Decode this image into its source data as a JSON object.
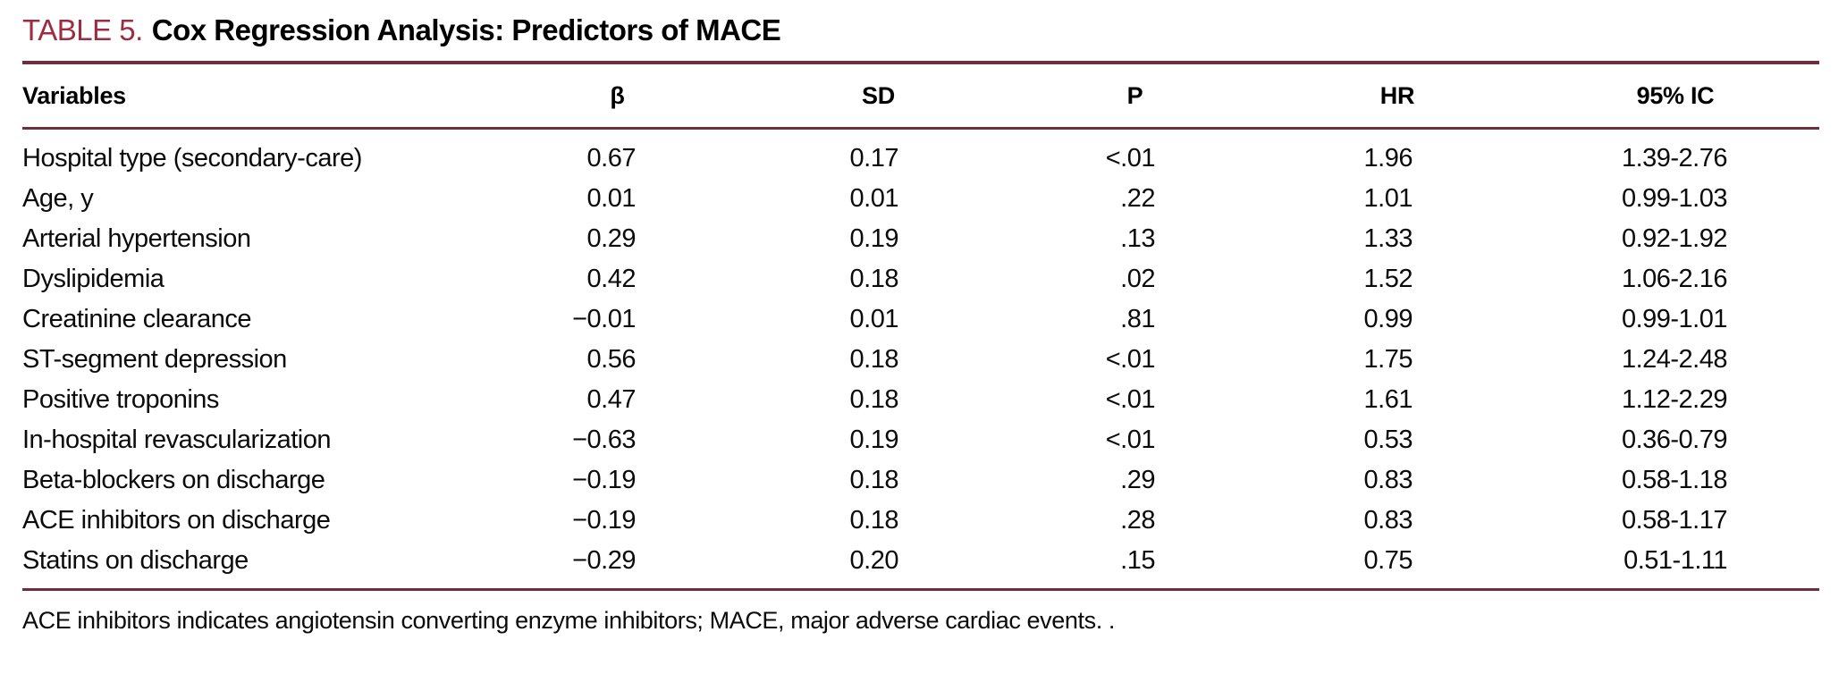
{
  "title": {
    "label": "TABLE 5.",
    "text": "Cox Regression Analysis: Predictors of MACE"
  },
  "colors": {
    "accent_red": "#9e2c41",
    "rule_maroon": "#6e2e3e",
    "text": "#000000",
    "background": "#ffffff"
  },
  "table": {
    "columns": [
      {
        "key": "variable",
        "label": "Variables"
      },
      {
        "key": "beta",
        "label": "β"
      },
      {
        "key": "sd",
        "label": "SD"
      },
      {
        "key": "p",
        "label": "P"
      },
      {
        "key": "hr",
        "label": "HR"
      },
      {
        "key": "ci",
        "label": "95% IC"
      }
    ],
    "rows": [
      {
        "variable": "Hospital type (secondary-care)",
        "beta": "0.67",
        "sd": "0.17",
        "p": "<.01",
        "hr": "1.96",
        "ci": "1.39-2.76"
      },
      {
        "variable": "Age, y",
        "beta": "0.01",
        "sd": "0.01",
        "p": ".22",
        "hr": "1.01",
        "ci": "0.99-1.03"
      },
      {
        "variable": "Arterial hypertension",
        "beta": "0.29",
        "sd": "0.19",
        "p": ".13",
        "hr": "1.33",
        "ci": "0.92-1.92"
      },
      {
        "variable": "Dyslipidemia",
        "beta": "0.42",
        "sd": "0.18",
        "p": ".02",
        "hr": "1.52",
        "ci": "1.06-2.16"
      },
      {
        "variable": "Creatinine clearance",
        "beta": "−0.01",
        "sd": "0.01",
        "p": ".81",
        "hr": "0.99",
        "ci": "0.99-1.01"
      },
      {
        "variable": "ST-segment depression",
        "beta": "0.56",
        "sd": "0.18",
        "p": "<.01",
        "hr": "1.75",
        "ci": "1.24-2.48"
      },
      {
        "variable": "Positive troponins",
        "beta": "0.47",
        "sd": "0.18",
        "p": "<.01",
        "hr": "1.61",
        "ci": "1.12-2.29"
      },
      {
        "variable": "In-hospital revascularization",
        "beta": "−0.63",
        "sd": "0.19",
        "p": "<.01",
        "hr": "0.53",
        "ci": "0.36-0.79"
      },
      {
        "variable": "Beta-blockers on discharge",
        "beta": "−0.19",
        "sd": "0.18",
        "p": ".29",
        "hr": "0.83",
        "ci": "0.58-1.18"
      },
      {
        "variable": "ACE inhibitors on discharge",
        "beta": "−0.19",
        "sd": "0.18",
        "p": ".28",
        "hr": "0.83",
        "ci": "0.58-1.17"
      },
      {
        "variable": "Statins on discharge",
        "beta": "−0.29",
        "sd": "0.20",
        "p": ".15",
        "hr": "0.75",
        "ci": "0.51-1.11"
      }
    ]
  },
  "footnote": "ACE inhibitors indicates angiotensin converting enzyme inhibitors; MACE, major adverse cardiac events. ."
}
